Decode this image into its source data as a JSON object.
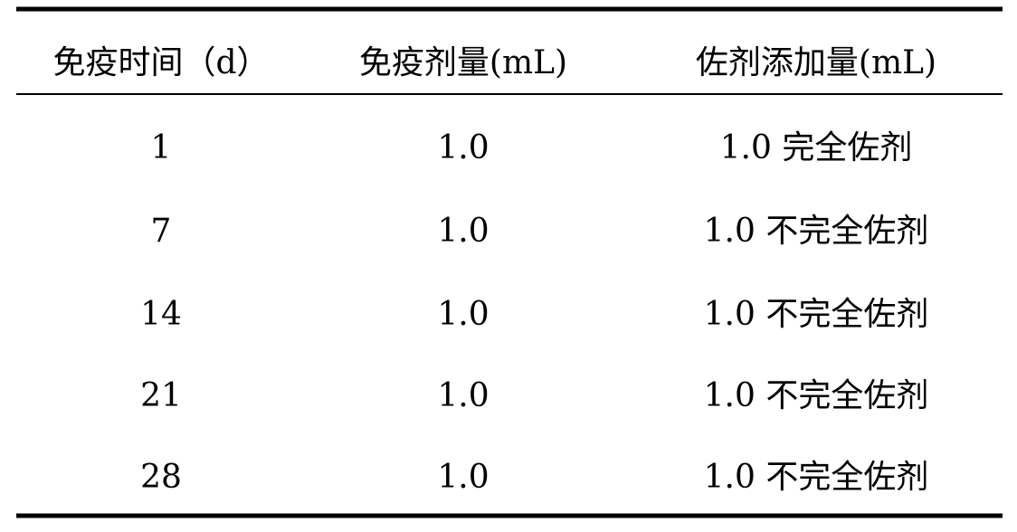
{
  "table": {
    "header": [
      "免疫时间（d）",
      "免疫剂量(mL)",
      "佐剂添加量(mL)"
    ],
    "rows": [
      [
        "1",
        "1.0",
        "1.0 完全佐剂"
      ],
      [
        "7",
        "1.0",
        "1.0 不完全佐剂"
      ],
      [
        "14",
        "1.0",
        "1.0 不完全佐剂"
      ],
      [
        "21",
        "1.0",
        "1.0 不完全佐剂"
      ],
      [
        "28",
        "1.0",
        "1.0 不完全佐剂"
      ]
    ]
  }
}
